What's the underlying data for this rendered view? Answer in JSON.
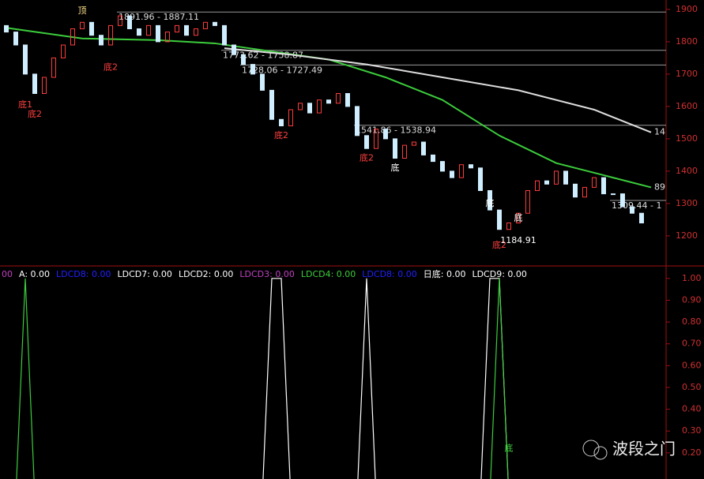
{
  "chart_data": [
    {
      "type": "candlestick",
      "up_color": "#ff3c3c",
      "down_color": "#cfeeff",
      "open": [
        1850,
        1830,
        1790,
        1700,
        1640,
        1690,
        1750,
        1790,
        1840,
        1860,
        1820,
        1790,
        1850,
        1880,
        1840,
        1820,
        1850,
        1800,
        1830,
        1850,
        1820,
        1840,
        1860,
        1850,
        1790,
        1760,
        1730,
        1700,
        1650,
        1560,
        1540,
        1590,
        1610,
        1580,
        1620,
        1610,
        1640,
        1600,
        1510,
        1470,
        1530,
        1500,
        1440,
        1480,
        1490,
        1450,
        1430,
        1400,
        1380,
        1420,
        1410,
        1340,
        1280,
        1220,
        1240,
        1270,
        1340,
        1370,
        1360,
        1400,
        1360,
        1320,
        1350,
        1380,
        1330,
        1330,
        1290,
        1270
      ],
      "close": [
        1830,
        1790,
        1700,
        1640,
        1690,
        1750,
        1790,
        1840,
        1860,
        1820,
        1790,
        1850,
        1880,
        1840,
        1820,
        1850,
        1800,
        1830,
        1850,
        1820,
        1840,
        1860,
        1850,
        1790,
        1760,
        1730,
        1700,
        1650,
        1560,
        1540,
        1590,
        1610,
        1580,
        1620,
        1610,
        1640,
        1600,
        1510,
        1470,
        1530,
        1500,
        1440,
        1480,
        1490,
        1450,
        1430,
        1400,
        1380,
        1420,
        1410,
        1340,
        1280,
        1220,
        1240,
        1270,
        1340,
        1370,
        1360,
        1400,
        1360,
        1320,
        1350,
        1380,
        1330,
        1330,
        1290,
        1270,
        1240
      ],
      "ylim": [
        1112,
        1929
      ],
      "yticks": [
        1200,
        1300,
        1400,
        1500,
        1600,
        1700,
        1800,
        1900
      ],
      "series": [
        {
          "label": "89",
          "color": "#3ccc3c",
          "x": [
            0,
            8,
            16,
            22,
            28,
            34,
            40,
            46,
            52,
            58,
            64,
            68
          ],
          "values": [
            1843,
            1810,
            1805,
            1795,
            1770,
            1745,
            1690,
            1620,
            1510,
            1425,
            1380,
            1350
          ]
        },
        {
          "label": "14",
          "color": "#dddddd",
          "x": [
            23,
            30,
            38,
            46,
            54,
            62,
            68
          ],
          "values": [
            1780,
            1760,
            1730,
            1690,
            1650,
            1590,
            1520
          ]
        }
      ],
      "levels": [
        {
          "label": "1891.96 - 1887.11",
          "value": 1891.96,
          "start": 12
        },
        {
          "label": "1773.62 - 1758.87",
          "value": 1773.62,
          "start": 23
        },
        {
          "label": "1728.06 - 1727.49",
          "value": 1728.06,
          "start": 25
        },
        {
          "label": "1541.86 - 1538.94",
          "value": 1541.86,
          "start": 37
        },
        {
          "label": "1309.44 - 1",
          "value": 1309.44,
          "start": 64
        }
      ],
      "annotations": [
        {
          "text": "顶",
          "x": 8,
          "y": 1895,
          "color": "#ffe08c"
        },
        {
          "text": "底1",
          "x": 2,
          "y": 1605,
          "color": "#ff4040"
        },
        {
          "text": "底2",
          "x": 3,
          "y": 1575,
          "color": "#ff4040"
        },
        {
          "text": "底2",
          "x": 11,
          "y": 1720,
          "color": "#ff4040"
        },
        {
          "text": "底2",
          "x": 29,
          "y": 1510,
          "color": "#ff4040"
        },
        {
          "text": "底2",
          "x": 38,
          "y": 1440,
          "color": "#ff4040"
        },
        {
          "text": "底",
          "x": 41,
          "y": 1410,
          "color": "#ffffff"
        },
        {
          "text": "底",
          "x": 51,
          "y": 1300,
          "color": "#ffffff"
        },
        {
          "text": "底",
          "x": 54,
          "y": 1255,
          "color": "#ffffff"
        },
        {
          "text": "底2",
          "x": 52,
          "y": 1170,
          "color": "#ff4040"
        },
        {
          "text": "1184.91",
          "x": 54,
          "y": 1185,
          "color": "#ffffff"
        }
      ]
    },
    {
      "type": "line",
      "legend": [
        {
          "text": "00",
          "color": "#c040c0"
        },
        {
          "text": "A: 0.00",
          "color": "#ffffff"
        },
        {
          "text": "LDCD8: 0.00",
          "color": "#2020ff"
        },
        {
          "text": "LDCD7: 0.00",
          "color": "#ffffff"
        },
        {
          "text": "LDCD2: 0.00",
          "color": "#ffffff"
        },
        {
          "text": "LDCD3: 0.00",
          "color": "#c040c0"
        },
        {
          "text": "LDCD4: 0.00",
          "color": "#3ccc3c"
        },
        {
          "text": "LDCD8: 0.00",
          "color": "#2020ff"
        },
        {
          "text": "日底: 0.00",
          "color": "#ffffff"
        },
        {
          "text": "LDCD9: 0.00",
          "color": "#ffffff"
        }
      ],
      "series": [
        {
          "color": "#ffffff",
          "values": [
            0,
            0,
            0,
            0,
            0,
            0,
            0,
            0,
            0,
            0,
            0,
            0,
            0,
            0,
            0,
            0,
            0,
            0,
            0,
            0,
            0,
            0,
            0,
            0,
            0,
            0,
            0,
            0,
            1,
            1,
            0,
            0,
            0,
            0,
            0,
            0,
            0,
            0,
            1,
            0,
            0,
            0,
            0,
            0,
            0,
            0,
            0,
            0,
            0,
            0,
            0,
            1,
            1,
            0,
            0,
            0,
            0,
            0,
            0,
            0,
            0,
            0,
            0,
            0,
            0,
            0,
            0,
            0
          ]
        },
        {
          "color": "#3ccc3c",
          "values": [
            0,
            0,
            1,
            0,
            0,
            0,
            0,
            0,
            0,
            0,
            0,
            0,
            0,
            0,
            0,
            0,
            0,
            0,
            0,
            0,
            0,
            0,
            0,
            0,
            0,
            0,
            0,
            0,
            0,
            0,
            0,
            0,
            0,
            0,
            0,
            0,
            0,
            0,
            0,
            0,
            0,
            0,
            0,
            0,
            0,
            0,
            0,
            0,
            0,
            0,
            0,
            0,
            1,
            0,
            0,
            0,
            0,
            0,
            0,
            0,
            0,
            0,
            0,
            0,
            0,
            0,
            0,
            0
          ]
        }
      ],
      "ylim": [
        0.08,
        1.05
      ],
      "yticks": [
        {
          "value": 1,
          "label": "1.00"
        },
        {
          "value": 0.9,
          "label": "0.90"
        },
        {
          "value": 0.8,
          "label": "0.80"
        },
        {
          "value": 0.7,
          "label": "0.70"
        },
        {
          "value": 0.6,
          "label": "0.60"
        },
        {
          "value": 0.5,
          "label": "0.50"
        },
        {
          "value": 0.4,
          "label": "0.40"
        },
        {
          "value": 0.3,
          "label": "0.30"
        },
        {
          "value": 0.2,
          "label": "0.20"
        }
      ],
      "annotations": [
        {
          "text": "底",
          "x": 53,
          "y": 0.22,
          "color": "#3ccc3c"
        }
      ]
    }
  ],
  "watermark": "波段之门"
}
